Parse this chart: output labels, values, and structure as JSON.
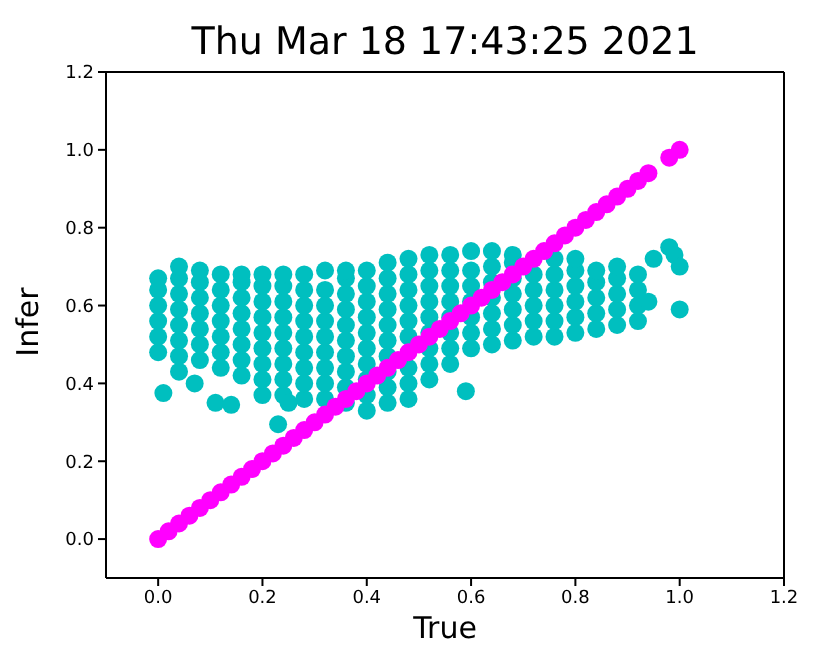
{
  "chart_data": {
    "type": "scatter",
    "title": "Thu Mar 18 17:43:25 2021",
    "xlabel": "True",
    "ylabel": "Infer",
    "marker": "circle",
    "xlim": [
      -0.1,
      1.2
    ],
    "ylim": [
      -0.1,
      1.2
    ],
    "xticks": [
      {
        "value": 0,
        "label": "0.0"
      },
      {
        "value": 0.2,
        "label": "0.2"
      },
      {
        "value": 0.4,
        "label": "0.4"
      },
      {
        "value": 0.6,
        "label": "0.6"
      },
      {
        "value": 0.8,
        "label": "0.8"
      },
      {
        "value": 1,
        "label": "1.0"
      },
      {
        "value": 1.2,
        "label": "1.2"
      }
    ],
    "yticks": [
      {
        "value": 0,
        "label": "0.0"
      },
      {
        "value": 0.2,
        "label": "0.2"
      },
      {
        "value": 0.4,
        "label": "0.4"
      },
      {
        "value": 0.6,
        "label": "0.6"
      },
      {
        "value": 0.8,
        "label": "0.8"
      },
      {
        "value": 1,
        "label": "1.0"
      },
      {
        "value": 1.2,
        "label": "1.2"
      }
    ],
    "series": [
      {
        "color": "#00bfbf",
        "x": [
          0,
          0,
          0,
          0,
          0,
          0,
          0.04,
          0.04,
          0.04,
          0.04,
          0.04,
          0.04,
          0.04,
          0.08,
          0.08,
          0.08,
          0.08,
          0.08,
          0.08,
          0.08,
          0.12,
          0.12,
          0.12,
          0.12,
          0.12,
          0.12,
          0.12,
          0.16,
          0.16,
          0.16,
          0.16,
          0.16,
          0.16,
          0.16,
          0.16,
          0.2,
          0.2,
          0.2,
          0.2,
          0.2,
          0.2,
          0.2,
          0.2,
          0.2,
          0.24,
          0.24,
          0.24,
          0.24,
          0.24,
          0.24,
          0.24,
          0.24,
          0.24,
          0.28,
          0.28,
          0.28,
          0.28,
          0.28,
          0.28,
          0.28,
          0.28,
          0.28,
          0.32,
          0.32,
          0.32,
          0.32,
          0.32,
          0.32,
          0.32,
          0.32,
          0.32,
          0.36,
          0.36,
          0.36,
          0.36,
          0.36,
          0.36,
          0.36,
          0.36,
          0.36,
          0.36,
          0.4,
          0.4,
          0.4,
          0.4,
          0.4,
          0.4,
          0.4,
          0.4,
          0.4,
          0.4,
          0.44,
          0.44,
          0.44,
          0.44,
          0.44,
          0.44,
          0.44,
          0.44,
          0.44,
          0.44,
          0.48,
          0.48,
          0.48,
          0.48,
          0.48,
          0.48,
          0.48,
          0.48,
          0.48,
          0.52,
          0.52,
          0.52,
          0.52,
          0.52,
          0.52,
          0.52,
          0.52,
          0.52,
          0.56,
          0.56,
          0.56,
          0.56,
          0.56,
          0.56,
          0.56,
          0.56,
          0.6,
          0.6,
          0.6,
          0.6,
          0.6,
          0.6,
          0.6,
          0.64,
          0.64,
          0.64,
          0.64,
          0.64,
          0.64,
          0.64,
          0.68,
          0.68,
          0.68,
          0.68,
          0.68,
          0.68,
          0.68,
          0.72,
          0.72,
          0.72,
          0.72,
          0.72,
          0.76,
          0.76,
          0.76,
          0.76,
          0.76,
          0.76,
          0.8,
          0.8,
          0.8,
          0.8,
          0.8,
          0.8,
          0.84,
          0.84,
          0.84,
          0.84,
          0.84,
          0.88,
          0.88,
          0.88,
          0.88,
          0.88,
          0.92,
          0.92,
          0.92,
          0.92,
          0.01,
          0.04,
          0.07,
          0.11,
          0.14,
          0.23,
          0.25,
          0.59,
          0.95,
          0.94,
          0.98,
          0.99,
          1.0,
          1.0
        ],
        "values": [
          0.48,
          0.52,
          0.56,
          0.6,
          0.64,
          0.67,
          0.47,
          0.51,
          0.55,
          0.59,
          0.63,
          0.67,
          0.7,
          0.46,
          0.5,
          0.54,
          0.58,
          0.62,
          0.66,
          0.69,
          0.44,
          0.48,
          0.52,
          0.56,
          0.6,
          0.64,
          0.68,
          0.42,
          0.46,
          0.5,
          0.54,
          0.58,
          0.62,
          0.66,
          0.68,
          0.37,
          0.41,
          0.45,
          0.49,
          0.53,
          0.57,
          0.61,
          0.65,
          0.68,
          0.37,
          0.41,
          0.45,
          0.49,
          0.53,
          0.57,
          0.61,
          0.65,
          0.68,
          0.36,
          0.4,
          0.44,
          0.48,
          0.52,
          0.56,
          0.6,
          0.64,
          0.68,
          0.36,
          0.4,
          0.44,
          0.48,
          0.52,
          0.56,
          0.6,
          0.64,
          0.69,
          0.35,
          0.39,
          0.43,
          0.47,
          0.51,
          0.55,
          0.59,
          0.63,
          0.67,
          0.69,
          0.33,
          0.37,
          0.41,
          0.45,
          0.49,
          0.53,
          0.57,
          0.61,
          0.65,
          0.69,
          0.35,
          0.39,
          0.43,
          0.47,
          0.51,
          0.55,
          0.59,
          0.63,
          0.67,
          0.71,
          0.36,
          0.4,
          0.44,
          0.52,
          0.56,
          0.6,
          0.64,
          0.68,
          0.72,
          0.41,
          0.45,
          0.49,
          0.53,
          0.57,
          0.61,
          0.65,
          0.69,
          0.73,
          0.45,
          0.49,
          0.53,
          0.57,
          0.61,
          0.65,
          0.69,
          0.73,
          0.49,
          0.53,
          0.57,
          0.61,
          0.65,
          0.69,
          0.74,
          0.5,
          0.54,
          0.58,
          0.62,
          0.66,
          0.7,
          0.74,
          0.51,
          0.55,
          0.59,
          0.63,
          0.67,
          0.71,
          0.73,
          0.52,
          0.56,
          0.6,
          0.64,
          0.68,
          0.52,
          0.56,
          0.6,
          0.64,
          0.68,
          0.72,
          0.53,
          0.57,
          0.61,
          0.65,
          0.69,
          0.72,
          0.54,
          0.58,
          0.62,
          0.66,
          0.69,
          0.55,
          0.59,
          0.63,
          0.67,
          0.7,
          0.56,
          0.6,
          0.64,
          0.68,
          0.375,
          0.43,
          0.4,
          0.35,
          0.345,
          0.295,
          0.35,
          0.38,
          0.72,
          0.61,
          0.75,
          0.73,
          0.7,
          0.59
        ]
      },
      {
        "color": "#ff00ff",
        "x": [
          0,
          0.02,
          0.04,
          0.06,
          0.08,
          0.1,
          0.12,
          0.14,
          0.16,
          0.18,
          0.2,
          0.22,
          0.24,
          0.26,
          0.28,
          0.3,
          0.32,
          0.34,
          0.36,
          0.38,
          0.4,
          0.42,
          0.44,
          0.46,
          0.48,
          0.5,
          0.52,
          0.54,
          0.56,
          0.58,
          0.6,
          0.62,
          0.64,
          0.66,
          0.68,
          0.7,
          0.72,
          0.74,
          0.76,
          0.78,
          0.8,
          0.82,
          0.84,
          0.86,
          0.88,
          0.9,
          0.92,
          0.94,
          0.98,
          1.0
        ],
        "values": [
          0,
          0.02,
          0.04,
          0.06,
          0.08,
          0.1,
          0.12,
          0.14,
          0.16,
          0.18,
          0.2,
          0.22,
          0.24,
          0.26,
          0.28,
          0.3,
          0.32,
          0.34,
          0.36,
          0.38,
          0.4,
          0.42,
          0.44,
          0.46,
          0.48,
          0.5,
          0.52,
          0.54,
          0.56,
          0.58,
          0.6,
          0.62,
          0.64,
          0.66,
          0.68,
          0.7,
          0.72,
          0.74,
          0.76,
          0.78,
          0.8,
          0.82,
          0.84,
          0.86,
          0.88,
          0.9,
          0.92,
          0.94,
          0.98,
          1.0
        ]
      }
    ]
  }
}
